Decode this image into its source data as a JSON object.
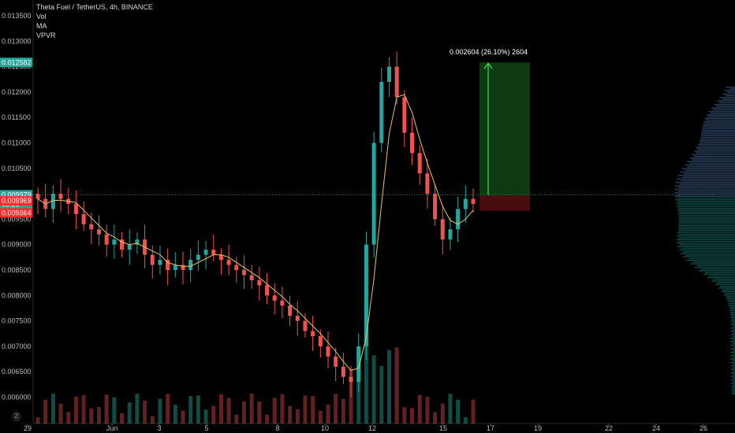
{
  "legend": {
    "symbol_line": "Theta Fuel / TetherUS, 4h, BINANCE",
    "indicators": [
      "Vol",
      "MA",
      "VPVR"
    ]
  },
  "price_scale": {
    "ticks": [
      "0.013500",
      "0.013000",
      "0.012500",
      "0.012000",
      "0.011500",
      "0.011000",
      "0.010500",
      "0.010000",
      "0.009500",
      "0.009000",
      "0.008500",
      "0.008000",
      "0.007500",
      "0.007000",
      "0.006500",
      "0.006000"
    ]
  },
  "time_scale": {
    "ticks": [
      "29",
      "Jun",
      "3",
      "5",
      "8",
      "10",
      "12",
      "15",
      "17",
      "19",
      "22",
      "24",
      "26"
    ]
  },
  "price_tags": {
    "target": {
      "label": "0.012582",
      "color": "#26a69a"
    },
    "current": {
      "label": "0.009979",
      "color": "#26a69a"
    },
    "countdown": {
      "label": "08:26",
      "color": "#26a69a"
    },
    "entry": {
      "label": "0.009969",
      "color": "#ff2e2e"
    },
    "stop": {
      "label": "0.009664",
      "color": "#ff2e2e"
    }
  },
  "position": {
    "label": "0.002604 (26.10%) 2604"
  },
  "scale_button": "Z",
  "colors": {
    "up": "#26a69a",
    "down": "#ef5350",
    "ma": "#e6c36a",
    "profit_zone": "#0d3a10",
    "loss_zone": "#4a0d0d",
    "grid_line": "#1e7a6e"
  },
  "chart_data": {
    "type": "candlestick",
    "title": "Theta Fuel / TetherUS, 4h, BINANCE",
    "timeframe": "4h",
    "ylim": [
      0.0057,
      0.0137
    ],
    "x_ticks": [
      "29",
      "Jun",
      "3",
      "5",
      "8",
      "10",
      "12",
      "15",
      "17",
      "19",
      "22",
      "24",
      "26"
    ],
    "close_series": [
      0.0099,
      0.0097,
      0.01,
      0.0099,
      0.0098,
      0.0096,
      0.0094,
      0.0093,
      0.0092,
      0.009,
      0.0091,
      0.0089,
      0.009,
      0.0091,
      0.0088,
      0.0086,
      0.0087,
      0.0085,
      0.0086,
      0.0085,
      0.0087,
      0.0088,
      0.0089,
      0.0088,
      0.0087,
      0.0086,
      0.0085,
      0.0084,
      0.0083,
      0.0082,
      0.008,
      0.0079,
      0.0078,
      0.0076,
      0.0075,
      0.0073,
      0.0072,
      0.007,
      0.0068,
      0.0066,
      0.0064,
      0.0063,
      0.007,
      0.009,
      0.011,
      0.0122,
      0.0125,
      0.0119,
      0.0112,
      0.0108,
      0.0104,
      0.01,
      0.0095,
      0.0091,
      0.0093,
      0.0097,
      0.0099,
      0.0098
    ],
    "ma_series_label": "MA",
    "current_price": 0.009979,
    "long_position": {
      "entry": 0.009969,
      "target": 0.012582,
      "stop": 0.009664,
      "change": 0.002604,
      "change_pct": 26.1
    }
  }
}
